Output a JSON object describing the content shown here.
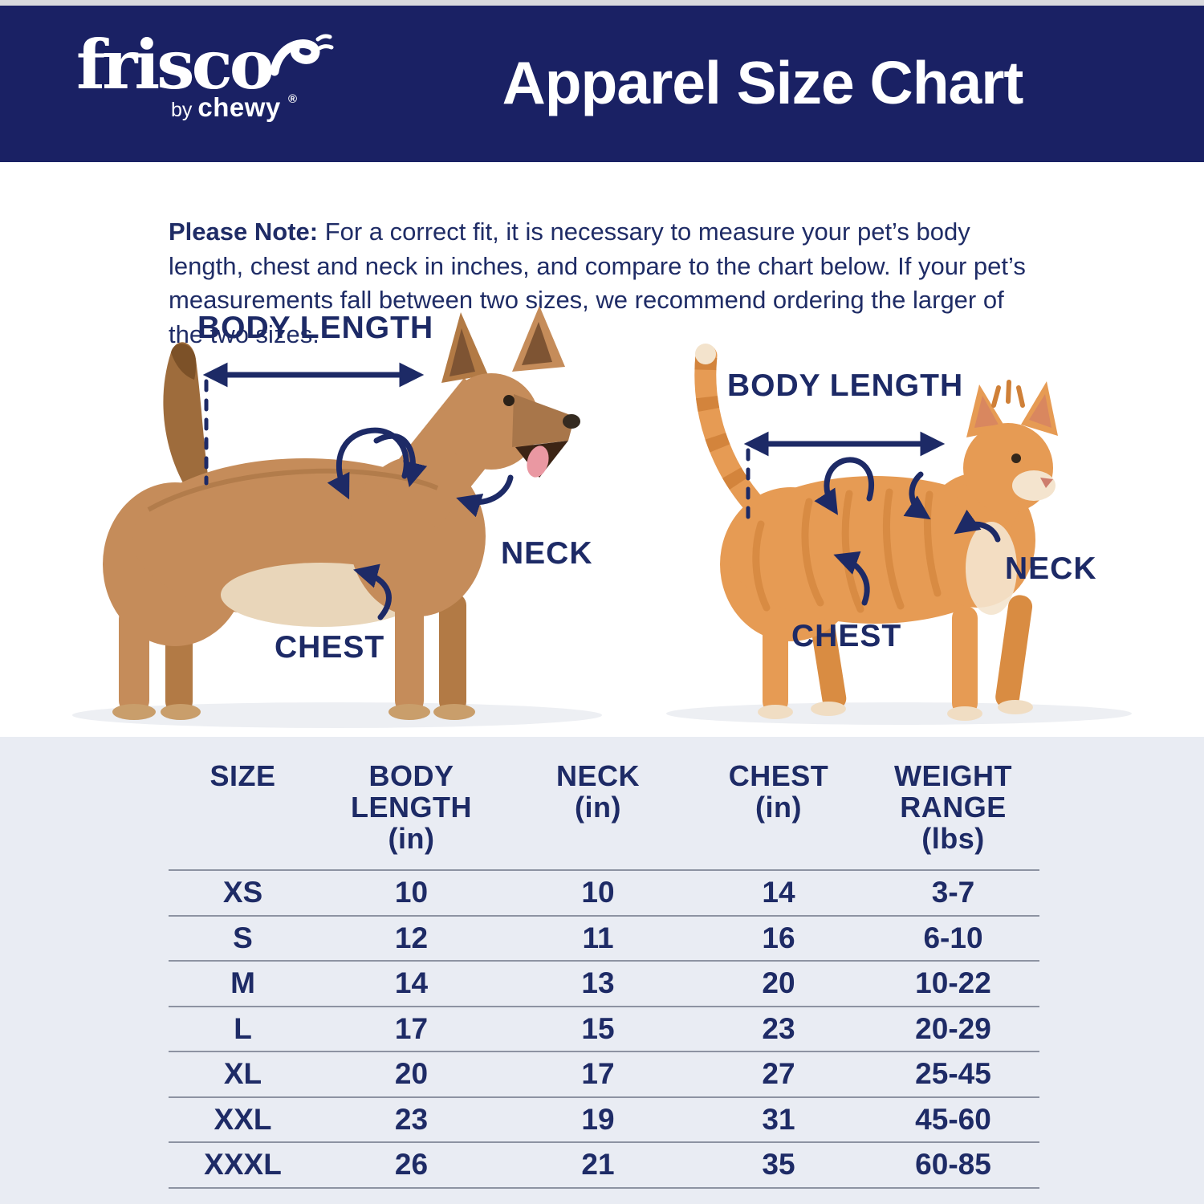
{
  "header": {
    "logo": {
      "brand": "frisco",
      "registered": "®",
      "by": "by",
      "chewy": "chewy"
    },
    "title": "Apparel Size Chart"
  },
  "note": {
    "label": "Please Note:",
    "text": " For a correct fit, it is necessary to measure your pet’s body length, chest and neck in inches, and compare to the chart below. If your pet’s measurements fall between two sizes, we recommend ordering the larger of the two sizes."
  },
  "diagram": {
    "dog": {
      "body_length": "BODY LENGTH",
      "neck": "NECK",
      "chest": "CHEST"
    },
    "cat": {
      "body_length": "BODY LENGTH",
      "neck": "NECK",
      "chest": "CHEST"
    }
  },
  "table": {
    "column_keys": [
      "size",
      "body_length",
      "neck",
      "chest",
      "weight"
    ],
    "headers": [
      [
        "SIZE"
      ],
      [
        "BODY",
        "LENGTH",
        "(in)"
      ],
      [
        "NECK",
        "(in)"
      ],
      [
        "CHEST",
        "(in)"
      ],
      [
        "WEIGHT",
        "RANGE",
        "(lbs)"
      ]
    ],
    "rows": [
      {
        "size": "XS",
        "body_length": "10",
        "neck": "10",
        "chest": "14",
        "weight": "3-7"
      },
      {
        "size": "S",
        "body_length": "12",
        "neck": "11",
        "chest": "16",
        "weight": "6-10"
      },
      {
        "size": "M",
        "body_length": "14",
        "neck": "13",
        "chest": "20",
        "weight": "10-22"
      },
      {
        "size": "L",
        "body_length": "17",
        "neck": "15",
        "chest": "23",
        "weight": "20-29"
      },
      {
        "size": "XL",
        "body_length": "20",
        "neck": "17",
        "chest": "27",
        "weight": "25-45"
      },
      {
        "size": "XXL",
        "body_length": "23",
        "neck": "19",
        "chest": "31",
        "weight": "45-60"
      },
      {
        "size": "XXXL",
        "body_length": "26",
        "neck": "21",
        "chest": "35",
        "weight": "60-85"
      }
    ]
  },
  "colors": {
    "banner_navy": "#1a2164",
    "text_navy": "#1e2b66",
    "annotation_navy": "#1d2a66",
    "table_background": "#e9ecf3",
    "divider_gray": "#8d93a2",
    "dog_tan": "#c58c5a",
    "cat_orange": "#e69b54"
  }
}
